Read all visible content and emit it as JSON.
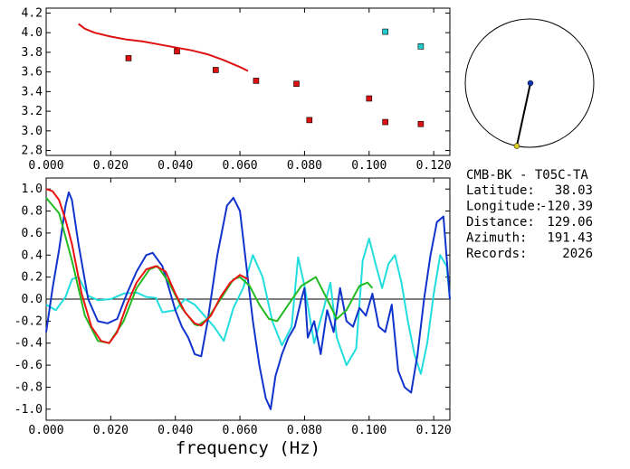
{
  "station": {
    "title": "CMB-BK - T05C-TA",
    "rows": [
      {
        "label": "Latitude:",
        "value": "38.03"
      },
      {
        "label": "Longitude:",
        "value": "-120.39"
      },
      {
        "label": "Distance:",
        "value": "129.06"
      },
      {
        "label": "Azimuth:",
        "value": "191.43"
      },
      {
        "label": "Records:",
        "value": "2026"
      }
    ]
  },
  "chart_data": [
    {
      "type": "scatter",
      "title": "",
      "xlabel": "",
      "ylabel": "",
      "xlim": [
        0.0,
        0.125
      ],
      "ylim": [
        2.75,
        4.25
      ],
      "xticks": [
        "0.000",
        "0.020",
        "0.040",
        "0.060",
        "0.080",
        "0.100",
        "0.120"
      ],
      "yticks": [
        "2.8",
        "3.0",
        "3.2",
        "3.4",
        "3.6",
        "3.8",
        "4.0",
        "4.2"
      ],
      "grid": false,
      "series": [
        {
          "color": "#dd1111",
          "kind": "points",
          "x": [
            0.0255,
            0.0405,
            0.0525,
            0.065,
            0.0775,
            0.0815,
            0.1,
            0.105,
            0.116
          ],
          "y": [
            3.74,
            3.81,
            3.62,
            3.51,
            3.48,
            3.11,
            3.33,
            3.09,
            3.07
          ]
        },
        {
          "color": "#22cccc",
          "kind": "points",
          "x": [
            0.105,
            0.116
          ],
          "y": [
            4.01,
            3.86
          ]
        },
        {
          "color": "#dd1111",
          "kind": "line",
          "x": [
            0.01,
            0.012,
            0.015,
            0.02,
            0.025,
            0.03,
            0.035,
            0.04,
            0.045,
            0.05,
            0.055,
            0.06,
            0.0625
          ],
          "y": [
            4.09,
            4.04,
            4.0,
            3.96,
            3.93,
            3.91,
            3.88,
            3.85,
            3.82,
            3.78,
            3.72,
            3.65,
            3.61
          ]
        }
      ]
    },
    {
      "type": "line",
      "title": "",
      "xlabel": "frequency (Hz)",
      "ylabel": "",
      "xlim": [
        0.0,
        0.125
      ],
      "ylim": [
        -1.1,
        1.1
      ],
      "xticks": [
        "0.000",
        "0.020",
        "0.040",
        "0.060",
        "0.080",
        "0.100",
        "0.120"
      ],
      "yticks": [
        "1.0",
        "0.8",
        "0.6",
        "0.4",
        "0.2",
        "0.0",
        "-0.2",
        "-0.4",
        "-0.6",
        "-0.8",
        "-1.0"
      ],
      "grid": false,
      "zero_line": true,
      "series": [
        {
          "color": "#22dddd",
          "x": [
            0.0,
            0.003,
            0.006,
            0.008,
            0.01,
            0.013,
            0.016,
            0.02,
            0.024,
            0.028,
            0.031,
            0.034,
            0.036,
            0.04,
            0.043,
            0.046,
            0.049,
            0.052,
            0.055,
            0.058,
            0.061,
            0.064,
            0.067,
            0.07,
            0.073,
            0.076,
            0.078,
            0.08,
            0.083,
            0.086,
            0.088,
            0.09,
            0.093,
            0.096,
            0.098,
            0.1,
            0.102,
            0.104,
            0.106,
            0.108,
            0.11,
            0.112,
            0.114,
            0.116,
            0.118,
            0.12,
            0.122,
            0.124,
            0.125
          ],
          "y": [
            -0.05,
            -0.1,
            0.02,
            0.18,
            0.2,
            0.03,
            -0.01,
            0.0,
            0.05,
            0.06,
            0.02,
            0.01,
            -0.12,
            -0.1,
            0.0,
            -0.05,
            -0.15,
            -0.25,
            -0.38,
            -0.08,
            0.1,
            0.4,
            0.2,
            -0.2,
            -0.42,
            -0.25,
            0.38,
            0.12,
            -0.4,
            -0.08,
            0.15,
            -0.35,
            -0.6,
            -0.45,
            0.35,
            0.55,
            0.32,
            0.1,
            0.32,
            0.4,
            0.15,
            -0.2,
            -0.5,
            -0.68,
            -0.4,
            0.05,
            0.4,
            0.3,
            0.0
          ]
        },
        {
          "color": "#1133cc",
          "x": [
            0.0,
            0.002,
            0.004,
            0.006,
            0.007,
            0.008,
            0.01,
            0.013,
            0.016,
            0.019,
            0.022,
            0.025,
            0.028,
            0.031,
            0.033,
            0.036,
            0.038,
            0.04,
            0.042,
            0.044,
            0.046,
            0.048,
            0.05,
            0.053,
            0.056,
            0.058,
            0.06,
            0.062,
            0.064,
            0.066,
            0.068,
            0.0695,
            0.071,
            0.073,
            0.075,
            0.077,
            0.079,
            0.08,
            0.081,
            0.083,
            0.085,
            0.087,
            0.089,
            0.091,
            0.093,
            0.095,
            0.097,
            0.099,
            0.101,
            0.103,
            0.105,
            0.107,
            0.109,
            0.111,
            0.113,
            0.115,
            0.117,
            0.119,
            0.121,
            0.123,
            0.125
          ],
          "y": [
            -0.3,
            0.1,
            0.45,
            0.85,
            0.97,
            0.9,
            0.5,
            0.0,
            -0.2,
            -0.22,
            -0.18,
            0.05,
            0.25,
            0.4,
            0.42,
            0.3,
            0.1,
            -0.1,
            -0.25,
            -0.35,
            -0.5,
            -0.52,
            -0.2,
            0.4,
            0.85,
            0.92,
            0.8,
            0.3,
            -0.2,
            -0.6,
            -0.9,
            -1.0,
            -0.7,
            -0.5,
            -0.35,
            -0.25,
            0.0,
            0.1,
            -0.35,
            -0.2,
            -0.5,
            -0.1,
            -0.3,
            0.1,
            -0.2,
            -0.25,
            -0.08,
            -0.15,
            0.05,
            -0.25,
            -0.3,
            -0.05,
            -0.65,
            -0.8,
            -0.85,
            -0.5,
            0.0,
            0.4,
            0.7,
            0.75,
            0.0
          ]
        },
        {
          "color": "#22bb22",
          "x": [
            0.0,
            0.004,
            0.008,
            0.012,
            0.016,
            0.0195,
            0.024,
            0.028,
            0.032,
            0.0345,
            0.038,
            0.042,
            0.046,
            0.047,
            0.05,
            0.054,
            0.058,
            0.06,
            0.063,
            0.066,
            0.069,
            0.0715,
            0.075,
            0.079,
            0.0835,
            0.087,
            0.09,
            0.093,
            0.097,
            0.0995,
            0.101
          ],
          "y": [
            0.92,
            0.78,
            0.35,
            -0.15,
            -0.38,
            -0.4,
            -0.2,
            0.1,
            0.27,
            0.3,
            0.15,
            -0.08,
            -0.23,
            -0.24,
            -0.18,
            0.0,
            0.18,
            0.2,
            0.12,
            -0.05,
            -0.18,
            -0.2,
            -0.05,
            0.12,
            0.2,
            0.0,
            -0.18,
            -0.1,
            0.12,
            0.15,
            0.1
          ]
        },
        {
          "color": "#ee1111",
          "x": [
            0.0,
            0.002,
            0.004,
            0.006,
            0.008,
            0.011,
            0.014,
            0.017,
            0.0195,
            0.022,
            0.025,
            0.028,
            0.031,
            0.034,
            0.037,
            0.04,
            0.043,
            0.046,
            0.048,
            0.051,
            0.054,
            0.057,
            0.06,
            0.0625
          ],
          "y": [
            1.0,
            0.98,
            0.9,
            0.72,
            0.5,
            0.05,
            -0.25,
            -0.38,
            -0.4,
            -0.3,
            -0.05,
            0.15,
            0.27,
            0.3,
            0.25,
            0.05,
            -0.12,
            -0.22,
            -0.24,
            -0.15,
            0.02,
            0.15,
            0.22,
            0.18
          ]
        }
      ]
    }
  ],
  "azimuth_widget": {
    "azimuth_deg": 191.43,
    "center_point_color": "#1133aa",
    "station_point_color": "#ddcc22"
  }
}
